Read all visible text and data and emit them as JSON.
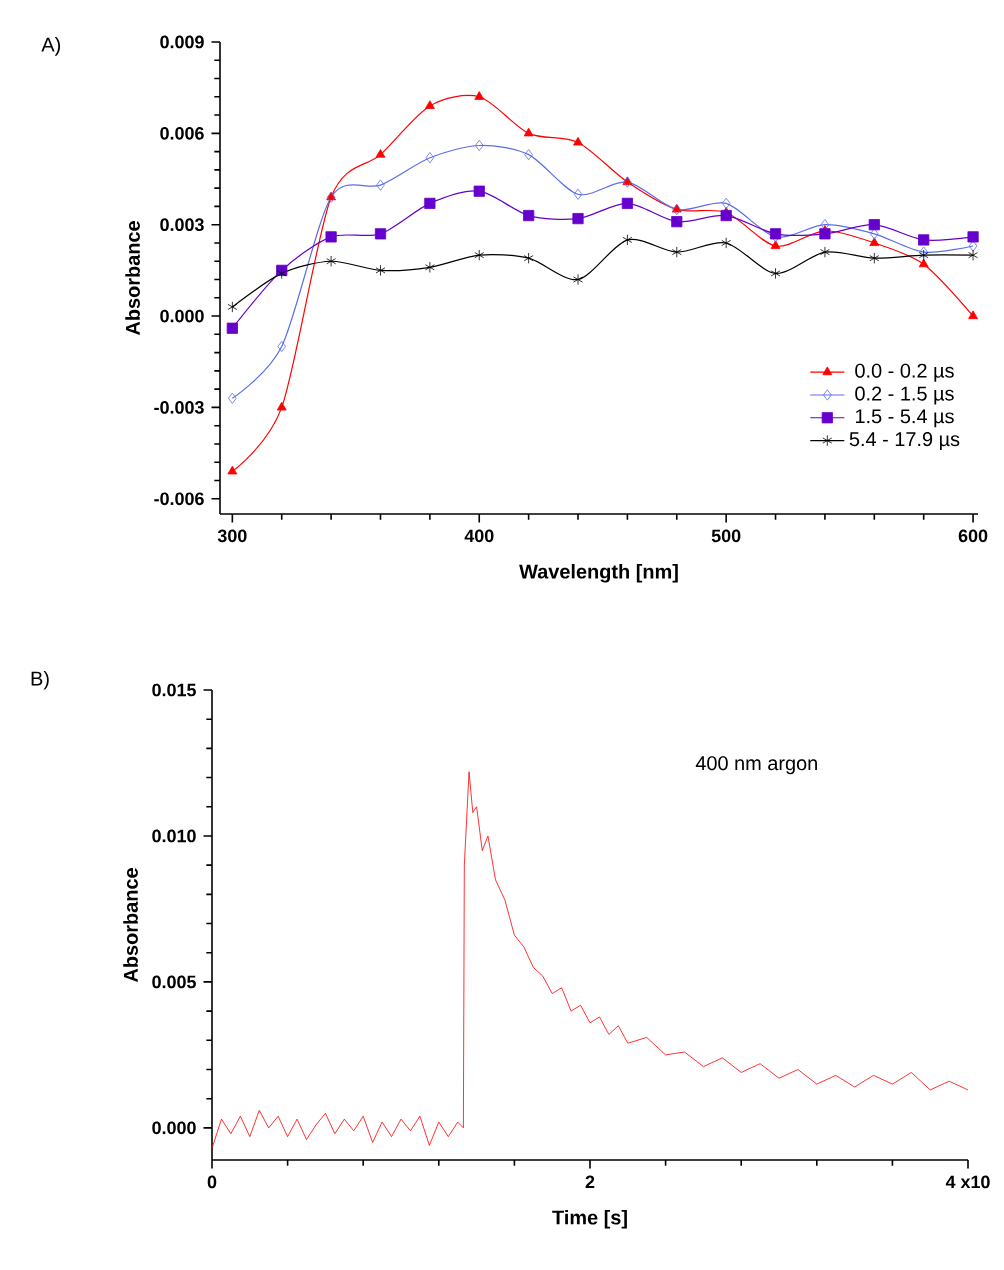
{
  "chart_data": [
    {
      "type": "line",
      "title": "A)",
      "xlabel": "Wavelength [nm]",
      "ylabel": "Absorbance",
      "x": [
        300,
        320,
        340,
        360,
        380,
        400,
        420,
        440,
        460,
        480,
        500,
        520,
        540,
        560,
        580,
        600
      ],
      "xlim": [
        295,
        602
      ],
      "xticks": [
        300,
        400,
        500,
        600
      ],
      "ylim": [
        -0.0065,
        0.009
      ],
      "yticks": [
        {
          "value": -0.006,
          "label": "-0.006"
        },
        {
          "value": -0.003,
          "label": "-0.003"
        },
        {
          "value": 0,
          "label": "0.000"
        },
        {
          "value": 0.003,
          "label": "0.003"
        },
        {
          "value": 0.006,
          "label": "0.006"
        },
        {
          "value": 0.009,
          "label": "0.009"
        }
      ],
      "grid": false,
      "legend": "bottom right",
      "series": [
        {
          "name": "0.0 -  0.2  µs",
          "color": "#ff0000",
          "marker": "triangle",
          "values": [
            -0.0051,
            -0.003,
            0.0039,
            0.0053,
            0.0069,
            0.0072,
            0.006,
            0.0057,
            0.0044,
            0.0035,
            0.0034,
            0.0023,
            0.0028,
            0.0024,
            0.0017,
            0.0
          ]
        },
        {
          "name": "0.2 -  1.5  µs",
          "color": "#5b6ee8",
          "marker": "diamond",
          "values": [
            -0.0027,
            -0.001,
            0.0039,
            0.0043,
            0.0052,
            0.0056,
            0.0053,
            0.004,
            0.0044,
            0.0035,
            0.0037,
            0.0026,
            0.003,
            0.0027,
            0.0021,
            0.0023
          ]
        },
        {
          "name": "1.5  -  5.4  µs",
          "color": "#6600cc",
          "marker": "square",
          "values": [
            -0.0004,
            0.0015,
            0.0026,
            0.0027,
            0.0037,
            0.0041,
            0.0033,
            0.0032,
            0.0037,
            0.0031,
            0.0033,
            0.0027,
            0.0027,
            0.003,
            0.0025,
            0.0026
          ]
        },
        {
          "name": "5.4  - 17.9 µs",
          "color": "#000000",
          "marker": "cross",
          "values": [
            0.0003,
            0.0014,
            0.0018,
            0.0015,
            0.0016,
            0.002,
            0.0019,
            0.0012,
            0.0025,
            0.0021,
            0.0024,
            0.0014,
            0.0021,
            0.0019,
            0.002,
            0.002
          ]
        }
      ]
    },
    {
      "type": "line",
      "title": "B)",
      "xlabel": "Time [s]",
      "ylabel": "Absorbance",
      "annotations": [
        "400 nm argon"
      ],
      "xlim": [
        0,
        4
      ],
      "xticks": [
        0,
        2,
        {
          "value": 4,
          "label": "4 x10"
        }
      ],
      "ylim": [
        -0.0011,
        0.015
      ],
      "yticks": [
        {
          "value": 0,
          "label": "0.000"
        },
        {
          "value": 0.005,
          "label": "0.005"
        },
        {
          "value": 0.01,
          "label": "0.010"
        },
        {
          "value": 0.015,
          "label": "0.015"
        }
      ],
      "grid": false,
      "legend": false,
      "series": [
        {
          "color": "#ff0000",
          "marker": "none",
          "x": [
            0.0,
            0.05,
            0.1,
            0.15,
            0.2,
            0.25,
            0.3,
            0.35,
            0.4,
            0.45,
            0.5,
            0.55,
            0.6,
            0.65,
            0.7,
            0.75,
            0.8,
            0.85,
            0.9,
            0.95,
            1.0,
            1.05,
            1.1,
            1.15,
            1.2,
            1.25,
            1.3,
            1.33,
            1.335,
            1.36,
            1.38,
            1.4,
            1.43,
            1.46,
            1.5,
            1.55,
            1.6,
            1.65,
            1.7,
            1.75,
            1.8,
            1.85,
            1.9,
            1.95,
            2.0,
            2.05,
            2.1,
            2.15,
            2.2,
            2.3,
            2.4,
            2.5,
            2.6,
            2.7,
            2.8,
            2.9,
            3.0,
            3.1,
            3.2,
            3.3,
            3.4,
            3.5,
            3.6,
            3.7,
            3.8,
            3.9,
            4.0
          ],
          "values": [
            -0.0007,
            0.0003,
            -0.0002,
            0.0004,
            -0.0003,
            0.0006,
            0.0,
            0.0004,
            -0.0003,
            0.0003,
            -0.0004,
            0.0001,
            0.0005,
            -0.0002,
            0.0003,
            -0.0001,
            0.0004,
            -0.0005,
            0.0002,
            -0.0003,
            0.0003,
            -0.0001,
            0.0004,
            -0.0006,
            0.0002,
            -0.0003,
            0.0002,
            0.0,
            0.009,
            0.0122,
            0.0108,
            0.011,
            0.0095,
            0.01,
            0.0085,
            0.0078,
            0.0066,
            0.0062,
            0.0055,
            0.0052,
            0.0046,
            0.0048,
            0.004,
            0.0042,
            0.0036,
            0.0038,
            0.0032,
            0.0035,
            0.0029,
            0.0031,
            0.0025,
            0.0026,
            0.0021,
            0.0024,
            0.0019,
            0.0022,
            0.0017,
            0.002,
            0.0015,
            0.0018,
            0.0014,
            0.0018,
            0.0015,
            0.0019,
            0.0013,
            0.0016,
            0.0013
          ]
        }
      ]
    }
  ]
}
